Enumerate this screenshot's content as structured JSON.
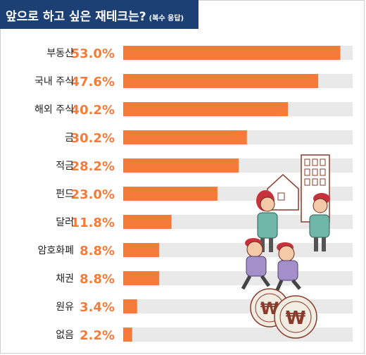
{
  "header": {
    "title": "앞으로 하고 싶은 재테크는?",
    "subtitle": "(복수 응답)"
  },
  "colors": {
    "banner": "#1c3f74",
    "bar": "#f47b3a",
    "track": "#e9e9e9",
    "value_text": "#f47b3a",
    "label_text": "#222222"
  },
  "chart_data": {
    "type": "bar",
    "orientation": "horizontal",
    "categories": [
      "부동산",
      "국내 주식",
      "해외 주식",
      "금",
      "적금",
      "펀드",
      "달러",
      "암호화폐",
      "채권",
      "원유",
      "없음"
    ],
    "values": [
      53.0,
      47.6,
      40.2,
      30.2,
      28.2,
      23.0,
      11.8,
      8.8,
      8.8,
      3.4,
      2.2
    ],
    "value_labels": [
      "53.0%",
      "47.6%",
      "40.2%",
      "30.2%",
      "28.2%",
      "23.0%",
      "11.8%",
      "8.8%",
      "8.8%",
      "3.4%",
      "2.2%"
    ],
    "title": "앞으로 하고 싶은 재테크는?",
    "subtitle": "(복수 응답)",
    "xlim": [
      0,
      56
    ]
  }
}
